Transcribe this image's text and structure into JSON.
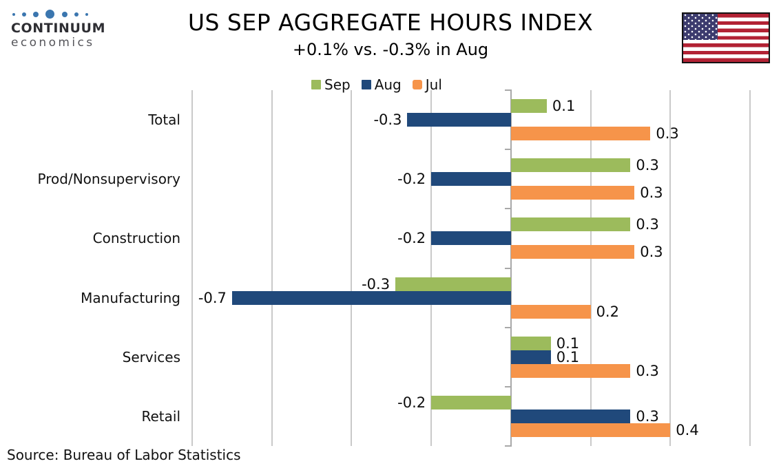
{
  "header": {
    "logo": {
      "line1": "CONTINUUM",
      "line2": "economics",
      "dot_color": "#3B76AF",
      "dot_sizes": [
        4,
        6,
        8,
        13,
        8,
        6,
        4
      ]
    },
    "flag": {
      "name": "us-flag",
      "red": "#B22234",
      "white": "#FFFFFF",
      "blue": "#3C3B6E",
      "border": "#131313"
    }
  },
  "chart_data": {
    "type": "bar",
    "orientation": "horizontal",
    "title": "US SEP AGGREGATE HOURS INDEX",
    "subtitle": "+0.1% vs. -0.3% in Aug",
    "categories": [
      "Total",
      "Prod/Nonsupervisory",
      "Construction",
      "Manufacturing",
      "Services",
      "Retail"
    ],
    "series": [
      {
        "name": "Sep",
        "color": "#9CBB5C",
        "values": [
          0.1,
          0.3,
          0.3,
          -0.3,
          0.1,
          -0.2
        ],
        "bar_values": [
          0.09,
          0.3,
          0.3,
          -0.29,
          0.1,
          -0.2
        ]
      },
      {
        "name": "Aug",
        "color": "#20497B",
        "values": [
          -0.3,
          -0.2,
          -0.2,
          -0.7,
          0.1,
          0.3
        ],
        "bar_values": [
          -0.26,
          -0.2,
          -0.2,
          -0.7,
          0.1,
          0.3
        ]
      },
      {
        "name": "Jul",
        "color": "#F6944A",
        "values": [
          0.3,
          0.3,
          0.3,
          0.2,
          0.3,
          0.4
        ],
        "bar_values": [
          0.35,
          0.31,
          0.31,
          0.2,
          0.3,
          0.4
        ]
      }
    ],
    "xlim": [
      -0.8,
      0.6
    ],
    "grid_step": 0.2,
    "gridlines": true,
    "x_tick_labels": false,
    "legend_position": "top",
    "data_labels": "outside-end",
    "value_format": "one-decimal",
    "colors": {
      "gridline": "#C9C9C9",
      "axis": "#A8A8A8"
    }
  },
  "source": "Source: Bureau of Labor Statistics"
}
